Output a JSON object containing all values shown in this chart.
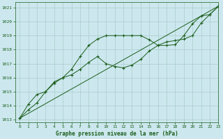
{
  "title": "Graphe pression niveau de la mer (hPa)",
  "bg_color": "#cce8ee",
  "grid_color": "#aacccc",
  "line_color": "#1a5c1a",
  "xlim": [
    -0.5,
    23
  ],
  "ylim": [
    1012.8,
    1021.4
  ],
  "yticks": [
    1013,
    1014,
    1015,
    1016,
    1017,
    1018,
    1019,
    1020,
    1021
  ],
  "xticks": [
    0,
    1,
    2,
    3,
    4,
    5,
    6,
    7,
    8,
    9,
    10,
    11,
    12,
    13,
    14,
    15,
    16,
    17,
    18,
    19,
    20,
    21,
    22,
    23
  ],
  "line1_x": [
    0,
    1,
    2,
    3,
    4,
    5,
    6,
    7,
    8,
    9,
    10,
    11,
    12,
    13,
    14,
    15,
    16,
    17,
    18,
    19,
    20,
    21,
    22,
    23
  ],
  "line1_y": [
    1013.1,
    1013.7,
    1014.2,
    1015.0,
    1015.7,
    1016.0,
    1016.6,
    1017.5,
    1018.3,
    1018.75,
    1019.0,
    1019.0,
    1019.0,
    1019.0,
    1019.0,
    1018.7,
    1018.3,
    1018.3,
    1018.35,
    1019.0,
    1019.85,
    1020.4,
    1020.5,
    1021.1
  ],
  "line2_x": [
    0,
    1,
    2,
    3,
    4,
    5,
    6,
    7,
    8,
    9,
    10,
    11,
    12,
    13,
    14,
    15,
    16,
    17,
    18,
    19,
    20,
    21,
    22,
    23
  ],
  "line2_y": [
    1013.1,
    1014.1,
    1014.8,
    1015.0,
    1015.6,
    1016.0,
    1016.2,
    1016.6,
    1017.1,
    1017.5,
    1017.0,
    1016.8,
    1016.7,
    1016.9,
    1017.3,
    1017.9,
    1018.3,
    1018.55,
    1018.65,
    1018.75,
    1019.0,
    1019.9,
    1020.5,
    1021.1
  ],
  "line3_x": [
    0,
    23
  ],
  "line3_y": [
    1013.1,
    1021.1
  ]
}
